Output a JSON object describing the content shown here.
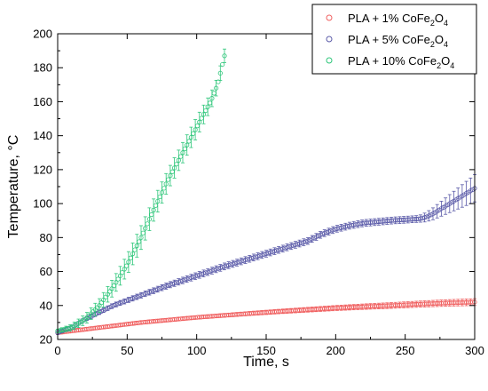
{
  "chart_data": {
    "type": "scatter",
    "xlabel": "Time, s",
    "ylabel": "Temperature, °C",
    "xlim": [
      0,
      300
    ],
    "ylim": [
      20,
      200
    ],
    "x_ticks": [
      0,
      50,
      100,
      150,
      200,
      250,
      300
    ],
    "y_ticks": [
      20,
      40,
      60,
      80,
      100,
      120,
      140,
      160,
      180,
      200
    ],
    "legend_position": "top-right",
    "grid": false,
    "series": [
      {
        "name": "PLA + 1% CoFe2O4",
        "legend_parts": {
          "prefix": "PLA + 1% CoFe",
          "sub1": "2",
          "mid": "O",
          "sub2": "4"
        },
        "color": "#f06060",
        "points": [
          [
            0,
            24
          ],
          [
            20,
            26
          ],
          [
            40,
            28
          ],
          [
            60,
            30
          ],
          [
            80,
            31.5
          ],
          [
            100,
            33
          ],
          [
            120,
            34.2
          ],
          [
            140,
            35.4
          ],
          [
            160,
            36.5
          ],
          [
            180,
            37.5
          ],
          [
            200,
            38.5
          ],
          [
            220,
            39.3
          ],
          [
            240,
            40
          ],
          [
            260,
            40.8
          ],
          [
            280,
            41.5
          ],
          [
            300,
            42
          ]
        ],
        "err": [
          [
            0,
            1
          ],
          [
            100,
            1
          ],
          [
            200,
            1.5
          ],
          [
            300,
            2
          ]
        ]
      },
      {
        "name": "PLA + 5% CoFe2O4",
        "legend_parts": {
          "prefix": "PLA + 5% CoFe",
          "sub1": "2",
          "mid": "O",
          "sub2": "4"
        },
        "color": "#5a5aa8",
        "points": [
          [
            0,
            24
          ],
          [
            10,
            27
          ],
          [
            20,
            32
          ],
          [
            30,
            36
          ],
          [
            40,
            40
          ],
          [
            60,
            46
          ],
          [
            80,
            52
          ],
          [
            100,
            57.5
          ],
          [
            120,
            63
          ],
          [
            140,
            68
          ],
          [
            160,
            73
          ],
          [
            180,
            78
          ],
          [
            190,
            82
          ],
          [
            200,
            85
          ],
          [
            210,
            87
          ],
          [
            220,
            88.5
          ],
          [
            240,
            90
          ],
          [
            260,
            91
          ],
          [
            265,
            92
          ],
          [
            270,
            94
          ],
          [
            280,
            99
          ],
          [
            290,
            104
          ],
          [
            300,
            109
          ]
        ],
        "err": [
          [
            0,
            1
          ],
          [
            100,
            2
          ],
          [
            200,
            2
          ],
          [
            260,
            2
          ],
          [
            280,
            5
          ],
          [
            300,
            8
          ]
        ]
      },
      {
        "name": "PLA + 10% CoFe2O4",
        "legend_parts": {
          "prefix": "PLA + 10% CoFe",
          "sub1": "2",
          "mid": "O",
          "sub2": "4"
        },
        "color": "#2ec67a",
        "points": [
          [
            0,
            25
          ],
          [
            10,
            27
          ],
          [
            20,
            32
          ],
          [
            30,
            40
          ],
          [
            40,
            51
          ],
          [
            50,
            64
          ],
          [
            60,
            80
          ],
          [
            70,
            98
          ],
          [
            80,
            115
          ],
          [
            90,
            130
          ],
          [
            100,
            145
          ],
          [
            110,
            160
          ],
          [
            115,
            170
          ],
          [
            120,
            187
          ]
        ],
        "err": [
          [
            0,
            1
          ],
          [
            40,
            5
          ],
          [
            60,
            7
          ],
          [
            80,
            6
          ],
          [
            100,
            6
          ],
          [
            120,
            4
          ]
        ]
      }
    ]
  }
}
